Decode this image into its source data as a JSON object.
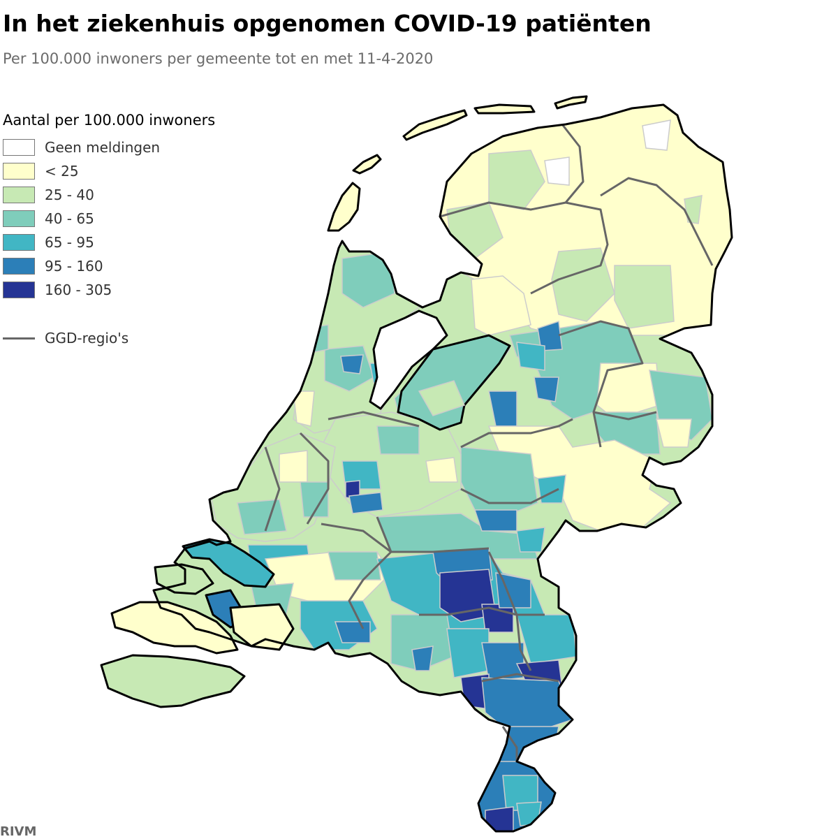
{
  "header": {
    "title": "In het ziekenhuis opgenomen COVID-19 patiënten",
    "subtitle": "Per 100.000 inwoners per gemeente tot en met 11-4-2020"
  },
  "legend": {
    "title": "Aantal per 100.000 inwoners",
    "items": [
      {
        "label": "Geen meldingen",
        "color": "#ffffff"
      },
      {
        "label": "< 25",
        "color": "#ffffcc"
      },
      {
        "label": "25 - 40",
        "color": "#c7e9b4"
      },
      {
        "label": "40 - 65",
        "color": "#7fcdbb"
      },
      {
        "label": "65 - 95",
        "color": "#41b6c4"
      },
      {
        "label": "95 - 160",
        "color": "#2c7fb8"
      },
      {
        "label": "160 - 305",
        "color": "#253494"
      }
    ],
    "ggd_label": "GGD-regio's",
    "ggd_color": "#666666"
  },
  "source": "RIVM"
}
